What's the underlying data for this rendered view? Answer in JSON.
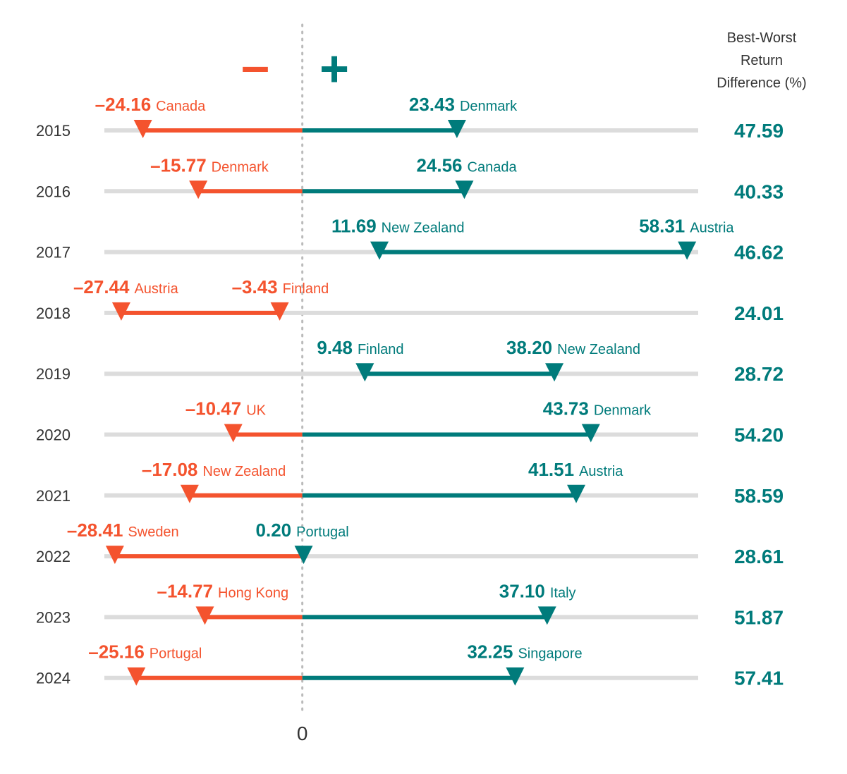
{
  "chart_data": {
    "type": "range",
    "negative_symbol": "–",
    "positive_symbol": "+",
    "difference_title": "Best-Worst Return Difference (%)",
    "categories": [
      "2015",
      "2016",
      "2017",
      "2018",
      "2019",
      "2020",
      "2021",
      "2022",
      "2023",
      "2024"
    ],
    "worst": {
      "values": [
        -24.16,
        -15.77,
        11.69,
        -27.44,
        9.48,
        -10.47,
        -17.08,
        -28.41,
        -14.77,
        -25.16
      ],
      "value_labels": [
        "–24.16",
        "–15.77",
        "11.69",
        "–27.44",
        "9.48",
        "–10.47",
        "–17.08",
        "–28.41",
        "–14.77",
        "–25.16"
      ],
      "countries": [
        "Canada",
        "Denmark",
        "New Zealand",
        "Austria",
        "Finland",
        "UK",
        "New Zealand",
        "Sweden",
        "Hong Kong",
        "Portugal"
      ]
    },
    "best": {
      "values": [
        23.43,
        24.56,
        58.31,
        -3.43,
        38.2,
        43.73,
        41.51,
        0.2,
        37.1,
        32.25
      ],
      "value_labels": [
        "23.43",
        "24.56",
        "58.31",
        "–3.43",
        "38.20",
        "43.73",
        "41.51",
        "0.20",
        "37.10",
        "32.25"
      ],
      "countries": [
        "Denmark",
        "Canada",
        "Austria",
        "Finland",
        "New Zealand",
        "Denmark",
        "Austria",
        "Portugal",
        "Italy",
        "Singapore"
      ]
    },
    "difference": {
      "values": [
        47.59,
        40.33,
        46.62,
        24.01,
        28.72,
        54.2,
        58.59,
        28.61,
        51.87,
        57.41
      ],
      "value_labels": [
        "47.59",
        "40.33",
        "46.62",
        "24.01",
        "28.72",
        "54.20",
        "58.59",
        "28.61",
        "51.87",
        "57.41"
      ]
    },
    "xlim": [
      -30,
      60
    ],
    "xticks": [
      0
    ],
    "negative_color": "#f4532e",
    "positive_color": "#007b7b",
    "track_color": "#dcdcdc"
  }
}
